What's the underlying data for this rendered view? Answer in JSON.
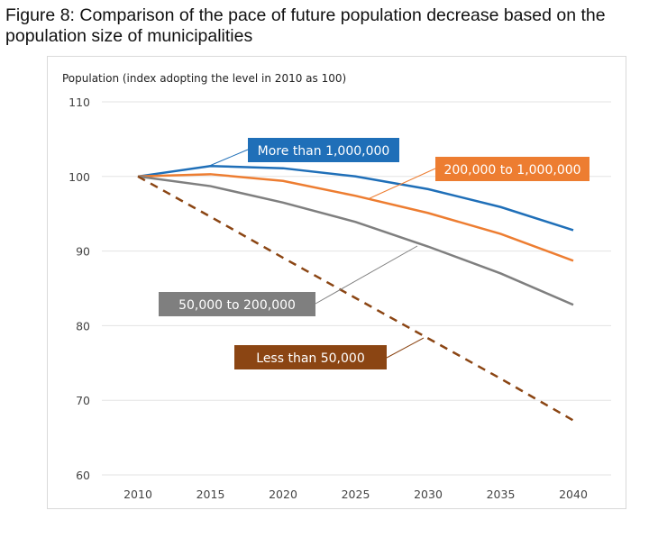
{
  "title": "Figure 8: Comparison of the pace of future population decrease based on the population size of municipalities",
  "chart_data": {
    "type": "line",
    "ylabel": "Population (index adopting the level in 2010 as 100)",
    "x": [
      2010,
      2015,
      2020,
      2025,
      2030,
      2035,
      2040
    ],
    "ylim": [
      60,
      110
    ],
    "yticks": [
      60,
      70,
      80,
      90,
      100,
      110
    ],
    "grid": true,
    "series": [
      {
        "name": "More than 1,000,000",
        "color": "#1f6fb8",
        "dashed": false,
        "values": [
          100,
          101.4,
          101.1,
          100.0,
          98.3,
          95.9,
          92.8
        ]
      },
      {
        "name": "200,000 to 1,000,000",
        "color": "#ed7d31",
        "dashed": false,
        "values": [
          100,
          100.3,
          99.4,
          97.4,
          95.1,
          92.3,
          88.7
        ]
      },
      {
        "name": "50,000 to 200,000",
        "color": "#7f7f7f",
        "dashed": false,
        "values": [
          100,
          98.7,
          96.5,
          93.9,
          90.6,
          87.0,
          82.8
        ]
      },
      {
        "name": "Less than 50,000",
        "color": "#8b4513",
        "dashed": true,
        "values": [
          100,
          94.6,
          89.1,
          83.7,
          78.3,
          72.9,
          67.3
        ]
      }
    ]
  }
}
